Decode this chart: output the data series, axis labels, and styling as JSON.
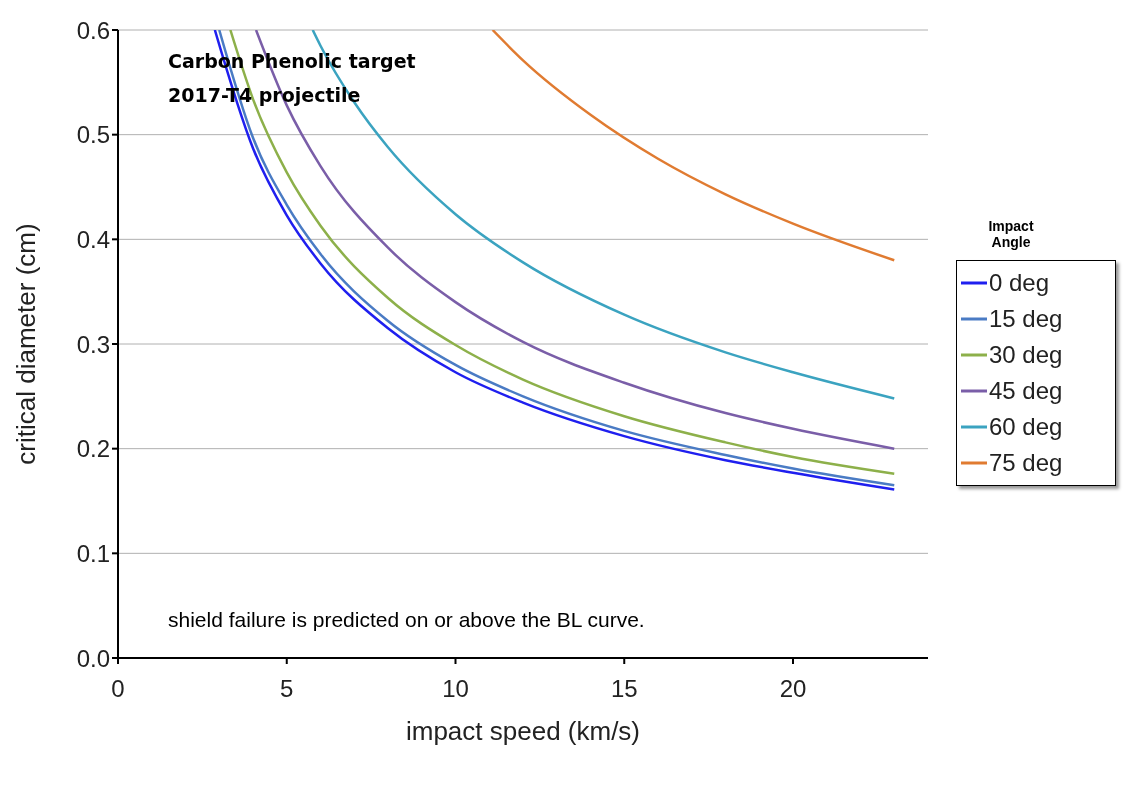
{
  "chart_data": {
    "type": "line",
    "xlabel": "impact speed  (km/s)",
    "ylabel": "critical diameter (cm)",
    "legend_title": "Impact Angle",
    "legend": "right",
    "grid": "y",
    "marker": "none",
    "line_style": "solid",
    "xlim": [
      0,
      24
    ],
    "xticks": [
      0,
      5,
      10,
      15,
      20
    ],
    "ylim": [
      0,
      0.6
    ],
    "yticks": [
      {
        "value": 0,
        "label": "0.0"
      },
      0.1,
      0.2,
      0.3,
      0.4,
      0.5,
      0.6
    ],
    "annotations": [
      "Carbon Phenolic target",
      "2017-T4 projectile",
      "shield failure is predicted on or above the BL curve."
    ],
    "series": [
      {
        "name": "0 deg",
        "color": "#1f1fef",
        "x": [
          2.87,
          4,
          5,
          6,
          8,
          10,
          12,
          15,
          18,
          20,
          23
        ],
        "values": [
          0.6,
          0.487,
          0.423,
          0.377,
          0.315,
          0.273,
          0.244,
          0.212,
          0.189,
          0.177,
          0.161
        ]
      },
      {
        "name": "15 deg",
        "color": "#4a7bc4",
        "x": [
          3,
          4,
          5,
          6,
          8,
          10,
          12,
          15,
          18,
          20,
          23
        ],
        "values": [
          0.6,
          0.497,
          0.433,
          0.386,
          0.322,
          0.28,
          0.25,
          0.217,
          0.194,
          0.181,
          0.165
        ]
      },
      {
        "name": "30 deg",
        "color": "#8db04a",
        "x": [
          3.33,
          4,
          5,
          6,
          8,
          10,
          12,
          15,
          18,
          20,
          23
        ],
        "values": [
          0.6,
          0.534,
          0.464,
          0.413,
          0.344,
          0.299,
          0.266,
          0.231,
          0.206,
          0.192,
          0.176
        ]
      },
      {
        "name": "45 deg",
        "color": "#7a5ea8",
        "x": [
          4.09,
          5,
          6,
          8,
          10,
          12,
          15,
          18,
          20,
          23
        ],
        "values": [
          0.6,
          0.528,
          0.47,
          0.392,
          0.34,
          0.302,
          0.263,
          0.234,
          0.219,
          0.2
        ]
      },
      {
        "name": "60 deg",
        "color": "#3ba3c0",
        "x": [
          5.77,
          6,
          7,
          8,
          10,
          12,
          15,
          18,
          20,
          23
        ],
        "values": [
          0.6,
          0.585,
          0.531,
          0.488,
          0.424,
          0.378,
          0.328,
          0.292,
          0.273,
          0.248
        ]
      },
      {
        "name": "75 deg",
        "color": "#e07b31",
        "x": [
          11.1,
          12,
          14,
          16,
          18,
          20,
          23
        ],
        "values": [
          0.6,
          0.571,
          0.519,
          0.477,
          0.443,
          0.415,
          0.38
        ]
      }
    ]
  }
}
